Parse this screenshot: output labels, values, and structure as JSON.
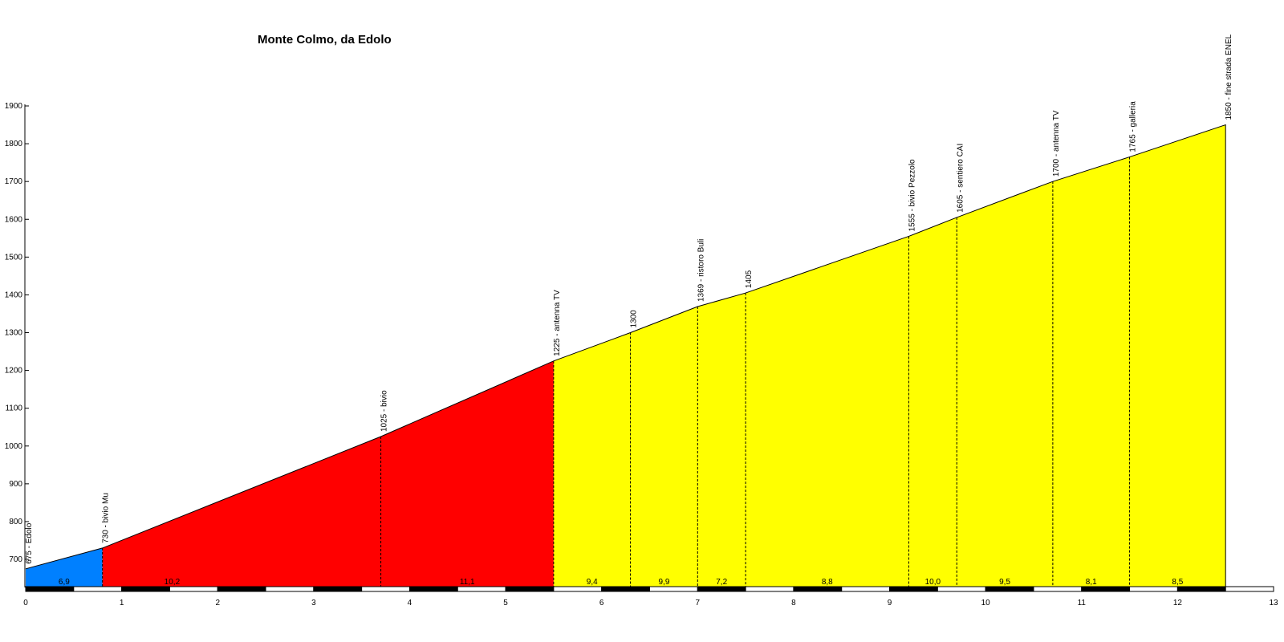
{
  "chart_data": {
    "type": "area",
    "title": "Monte Colmo, da Edolo",
    "xlabel": "",
    "ylabel": "",
    "xlim": [
      0,
      13
    ],
    "ylim": [
      630,
      1900
    ],
    "x_ticks": [
      0,
      1,
      2,
      3,
      4,
      5,
      6,
      7,
      8,
      9,
      10,
      11,
      12,
      13
    ],
    "y_ticks": [
      700,
      800,
      900,
      1000,
      1100,
      1200,
      1300,
      1400,
      1500,
      1600,
      1700,
      1800,
      1900
    ],
    "profile": [
      {
        "km": 0.0,
        "alt": 675,
        "label": "675 - Edolo"
      },
      {
        "km": 0.8,
        "alt": 730,
        "label": "730 - bivio Mu"
      },
      {
        "km": 3.7,
        "alt": 1025,
        "label": "1025 - bivio"
      },
      {
        "km": 5.5,
        "alt": 1225,
        "label": "1225 - antenna TV"
      },
      {
        "km": 6.3,
        "alt": 1300,
        "label": "1300"
      },
      {
        "km": 7.0,
        "alt": 1369,
        "label": "1369 - ristoro Buli"
      },
      {
        "km": 7.5,
        "alt": 1405,
        "label": "1405"
      },
      {
        "km": 9.2,
        "alt": 1555,
        "label": "1555 - bivio Pezzolo"
      },
      {
        "km": 9.7,
        "alt": 1605,
        "label": "1605 - sentiero CAI"
      },
      {
        "km": 10.7,
        "alt": 1700,
        "label": "1700 - antenna TV"
      },
      {
        "km": 11.5,
        "alt": 1765,
        "label": "1765 - galleria"
      },
      {
        "km": 12.5,
        "alt": 1850,
        "label": "1850 - fine strada ENEL"
      }
    ],
    "gradients": [
      {
        "from": 0.0,
        "to": 0.8,
        "label": "6,9"
      },
      {
        "from": 0.8,
        "to": 2.25,
        "label": "10,2"
      },
      {
        "from": 3.7,
        "to": 5.5,
        "label": "11,1"
      },
      {
        "from": 5.5,
        "to": 6.3,
        "label": "9,4"
      },
      {
        "from": 6.3,
        "to": 7.0,
        "label": "9,9"
      },
      {
        "from": 7.0,
        "to": 7.5,
        "label": "7,2"
      },
      {
        "from": 7.5,
        "to": 9.2,
        "label": "8,8"
      },
      {
        "from": 9.2,
        "to": 9.7,
        "label": "10,0"
      },
      {
        "from": 9.7,
        "to": 10.7,
        "label": "9,5"
      },
      {
        "from": 10.7,
        "to": 11.5,
        "label": "8,1"
      },
      {
        "from": 11.5,
        "to": 12.5,
        "label": "8,5"
      }
    ],
    "zones": [
      {
        "from": 0.0,
        "to": 0.8,
        "color": "#0080ff"
      },
      {
        "from": 0.8,
        "to": 5.5,
        "color": "#ff0000"
      },
      {
        "from": 5.5,
        "to": 12.5,
        "color": "#ffff00"
      }
    ],
    "grid": false,
    "legend": "none"
  }
}
